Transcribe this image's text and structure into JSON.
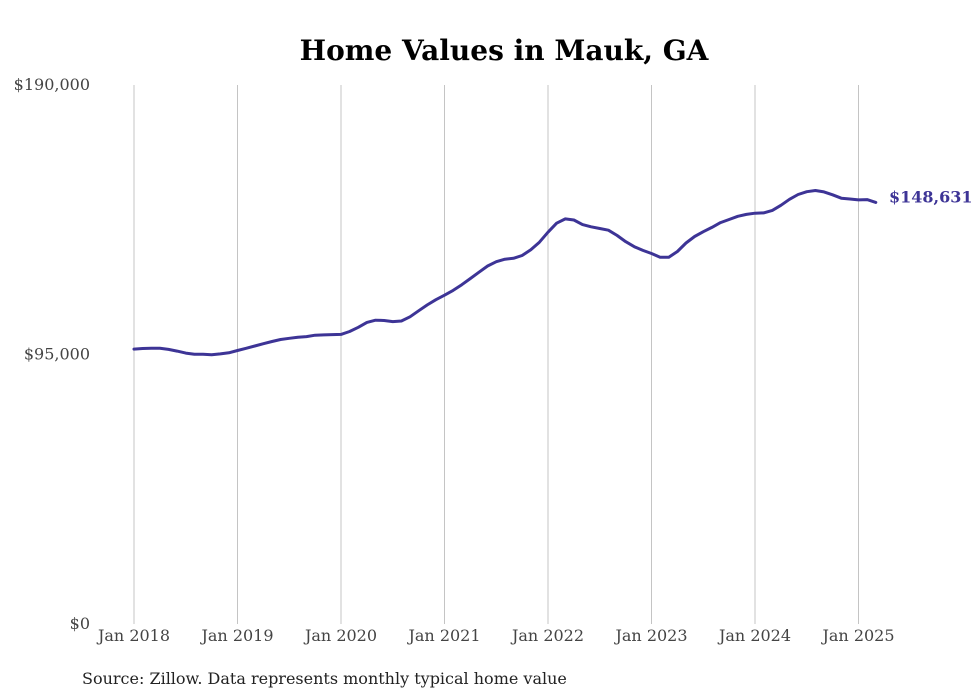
{
  "chart_data": {
    "type": "line",
    "title": "Home Values in Mauk, GA",
    "xlabel": "",
    "ylabel": "",
    "ylim": [
      0,
      190000
    ],
    "y_ticks": [
      {
        "value": 0,
        "label": "$0"
      },
      {
        "value": 95000,
        "label": "$95,000"
      },
      {
        "value": 190000,
        "label": "$190,000"
      }
    ],
    "x_ticks": [
      {
        "value": "2018-01",
        "label": "Jan 2018"
      },
      {
        "value": "2019-01",
        "label": "Jan 2019"
      },
      {
        "value": "2020-01",
        "label": "Jan 2020"
      },
      {
        "value": "2021-01",
        "label": "Jan 2021"
      },
      {
        "value": "2022-01",
        "label": "Jan 2022"
      },
      {
        "value": "2023-01",
        "label": "Jan 2023"
      },
      {
        "value": "2024-01",
        "label": "Jan 2024"
      },
      {
        "value": "2025-01",
        "label": "Jan 2025"
      }
    ],
    "grid": "vertical",
    "color": "#3d3496",
    "end_label": "$148,631",
    "series": [
      {
        "x": [
          "2018-01",
          "2018-02",
          "2018-03",
          "2018-04",
          "2018-05",
          "2018-06",
          "2018-07",
          "2018-08",
          "2018-09",
          "2018-10",
          "2018-11",
          "2018-12",
          "2019-01",
          "2019-02",
          "2019-03",
          "2019-04",
          "2019-05",
          "2019-06",
          "2019-07",
          "2019-08",
          "2019-09",
          "2019-10",
          "2019-11",
          "2019-12",
          "2020-01",
          "2020-02",
          "2020-03",
          "2020-04",
          "2020-05",
          "2020-06",
          "2020-07",
          "2020-08",
          "2020-09",
          "2020-10",
          "2020-11",
          "2020-12",
          "2021-01",
          "2021-02",
          "2021-03",
          "2021-04",
          "2021-05",
          "2021-06",
          "2021-07",
          "2021-08",
          "2021-09",
          "2021-10",
          "2021-11",
          "2021-12",
          "2022-01",
          "2022-02",
          "2022-03",
          "2022-04",
          "2022-05",
          "2022-06",
          "2022-07",
          "2022-08",
          "2022-09",
          "2022-10",
          "2022-11",
          "2022-12",
          "2023-01",
          "2023-02",
          "2023-03",
          "2023-04",
          "2023-05",
          "2023-06",
          "2023-07",
          "2023-08",
          "2023-09",
          "2023-10",
          "2023-11",
          "2023-12",
          "2024-01",
          "2024-02",
          "2024-03",
          "2024-04",
          "2024-05",
          "2024-06",
          "2024-07",
          "2024-08",
          "2024-09",
          "2024-10",
          "2024-11",
          "2024-12",
          "2025-01",
          "2025-02",
          "2025-03"
        ],
        "values": [
          96900,
          97100,
          97200,
          97200,
          96800,
          96200,
          95500,
          95100,
          95100,
          94900,
          95200,
          95600,
          96400,
          97200,
          98000,
          98800,
          99600,
          100300,
          100700,
          101100,
          101300,
          101800,
          101900,
          102000,
          102100,
          103100,
          104600,
          106300,
          107100,
          107000,
          106600,
          106800,
          108300,
          110400,
          112500,
          114300,
          115900,
          117600,
          119600,
          121800,
          124000,
          126200,
          127700,
          128600,
          128900,
          129900,
          131900,
          134600,
          138100,
          141300,
          142800,
          142400,
          140800,
          140000,
          139400,
          138800,
          137000,
          134800,
          133000,
          131700,
          130600,
          129300,
          129300,
          131300,
          134300,
          136600,
          138300,
          139800,
          141500,
          142600,
          143700,
          144400,
          144800,
          144900,
          145800,
          147600,
          149700,
          151400,
          152400,
          152800,
          152300,
          151300,
          150100,
          149800,
          149500,
          149600,
          148631
        ]
      }
    ]
  },
  "source_note": "Source: Zillow. Data represents monthly typical home value"
}
